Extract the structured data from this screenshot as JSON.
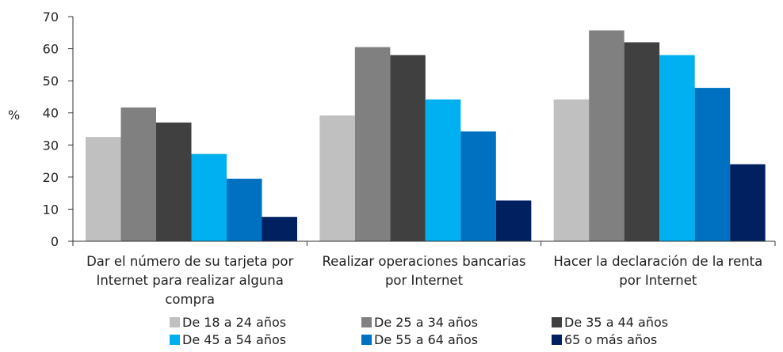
{
  "chart_data": {
    "type": "bar",
    "ylabel": "%",
    "ylim": [
      0,
      70
    ],
    "yticks": [
      0,
      10,
      20,
      30,
      40,
      50,
      60,
      70
    ],
    "grid": false,
    "legend_position": "bottom",
    "categories": [
      [
        "Dar el número de su tarjeta por",
        "Internet para realizar alguna",
        "compra"
      ],
      [
        "Realizar operaciones bancarias",
        "por Internet"
      ],
      [
        "Hacer la declaración de la renta",
        "por Internet"
      ]
    ],
    "series": [
      {
        "name": "De 18 a 24 años",
        "color": "#c0c0c0",
        "values": [
          32.5,
          39.2,
          44.2
        ]
      },
      {
        "name": "De 25 a 34 años",
        "color": "#808080",
        "values": [
          41.7,
          60.5,
          65.7
        ]
      },
      {
        "name": "De 35 a 44 años",
        "color": "#404040",
        "values": [
          37.0,
          58.0,
          62.0
        ]
      },
      {
        "name": "De 45 a 54 años",
        "color": "#00b0f0",
        "values": [
          27.2,
          44.2,
          58.0
        ]
      },
      {
        "name": "De 55 a 64 años",
        "color": "#0070c0",
        "values": [
          19.5,
          34.2,
          47.8
        ]
      },
      {
        "name": "65 o más años",
        "color": "#002060",
        "values": [
          7.6,
          12.7,
          24.0
        ]
      }
    ]
  }
}
